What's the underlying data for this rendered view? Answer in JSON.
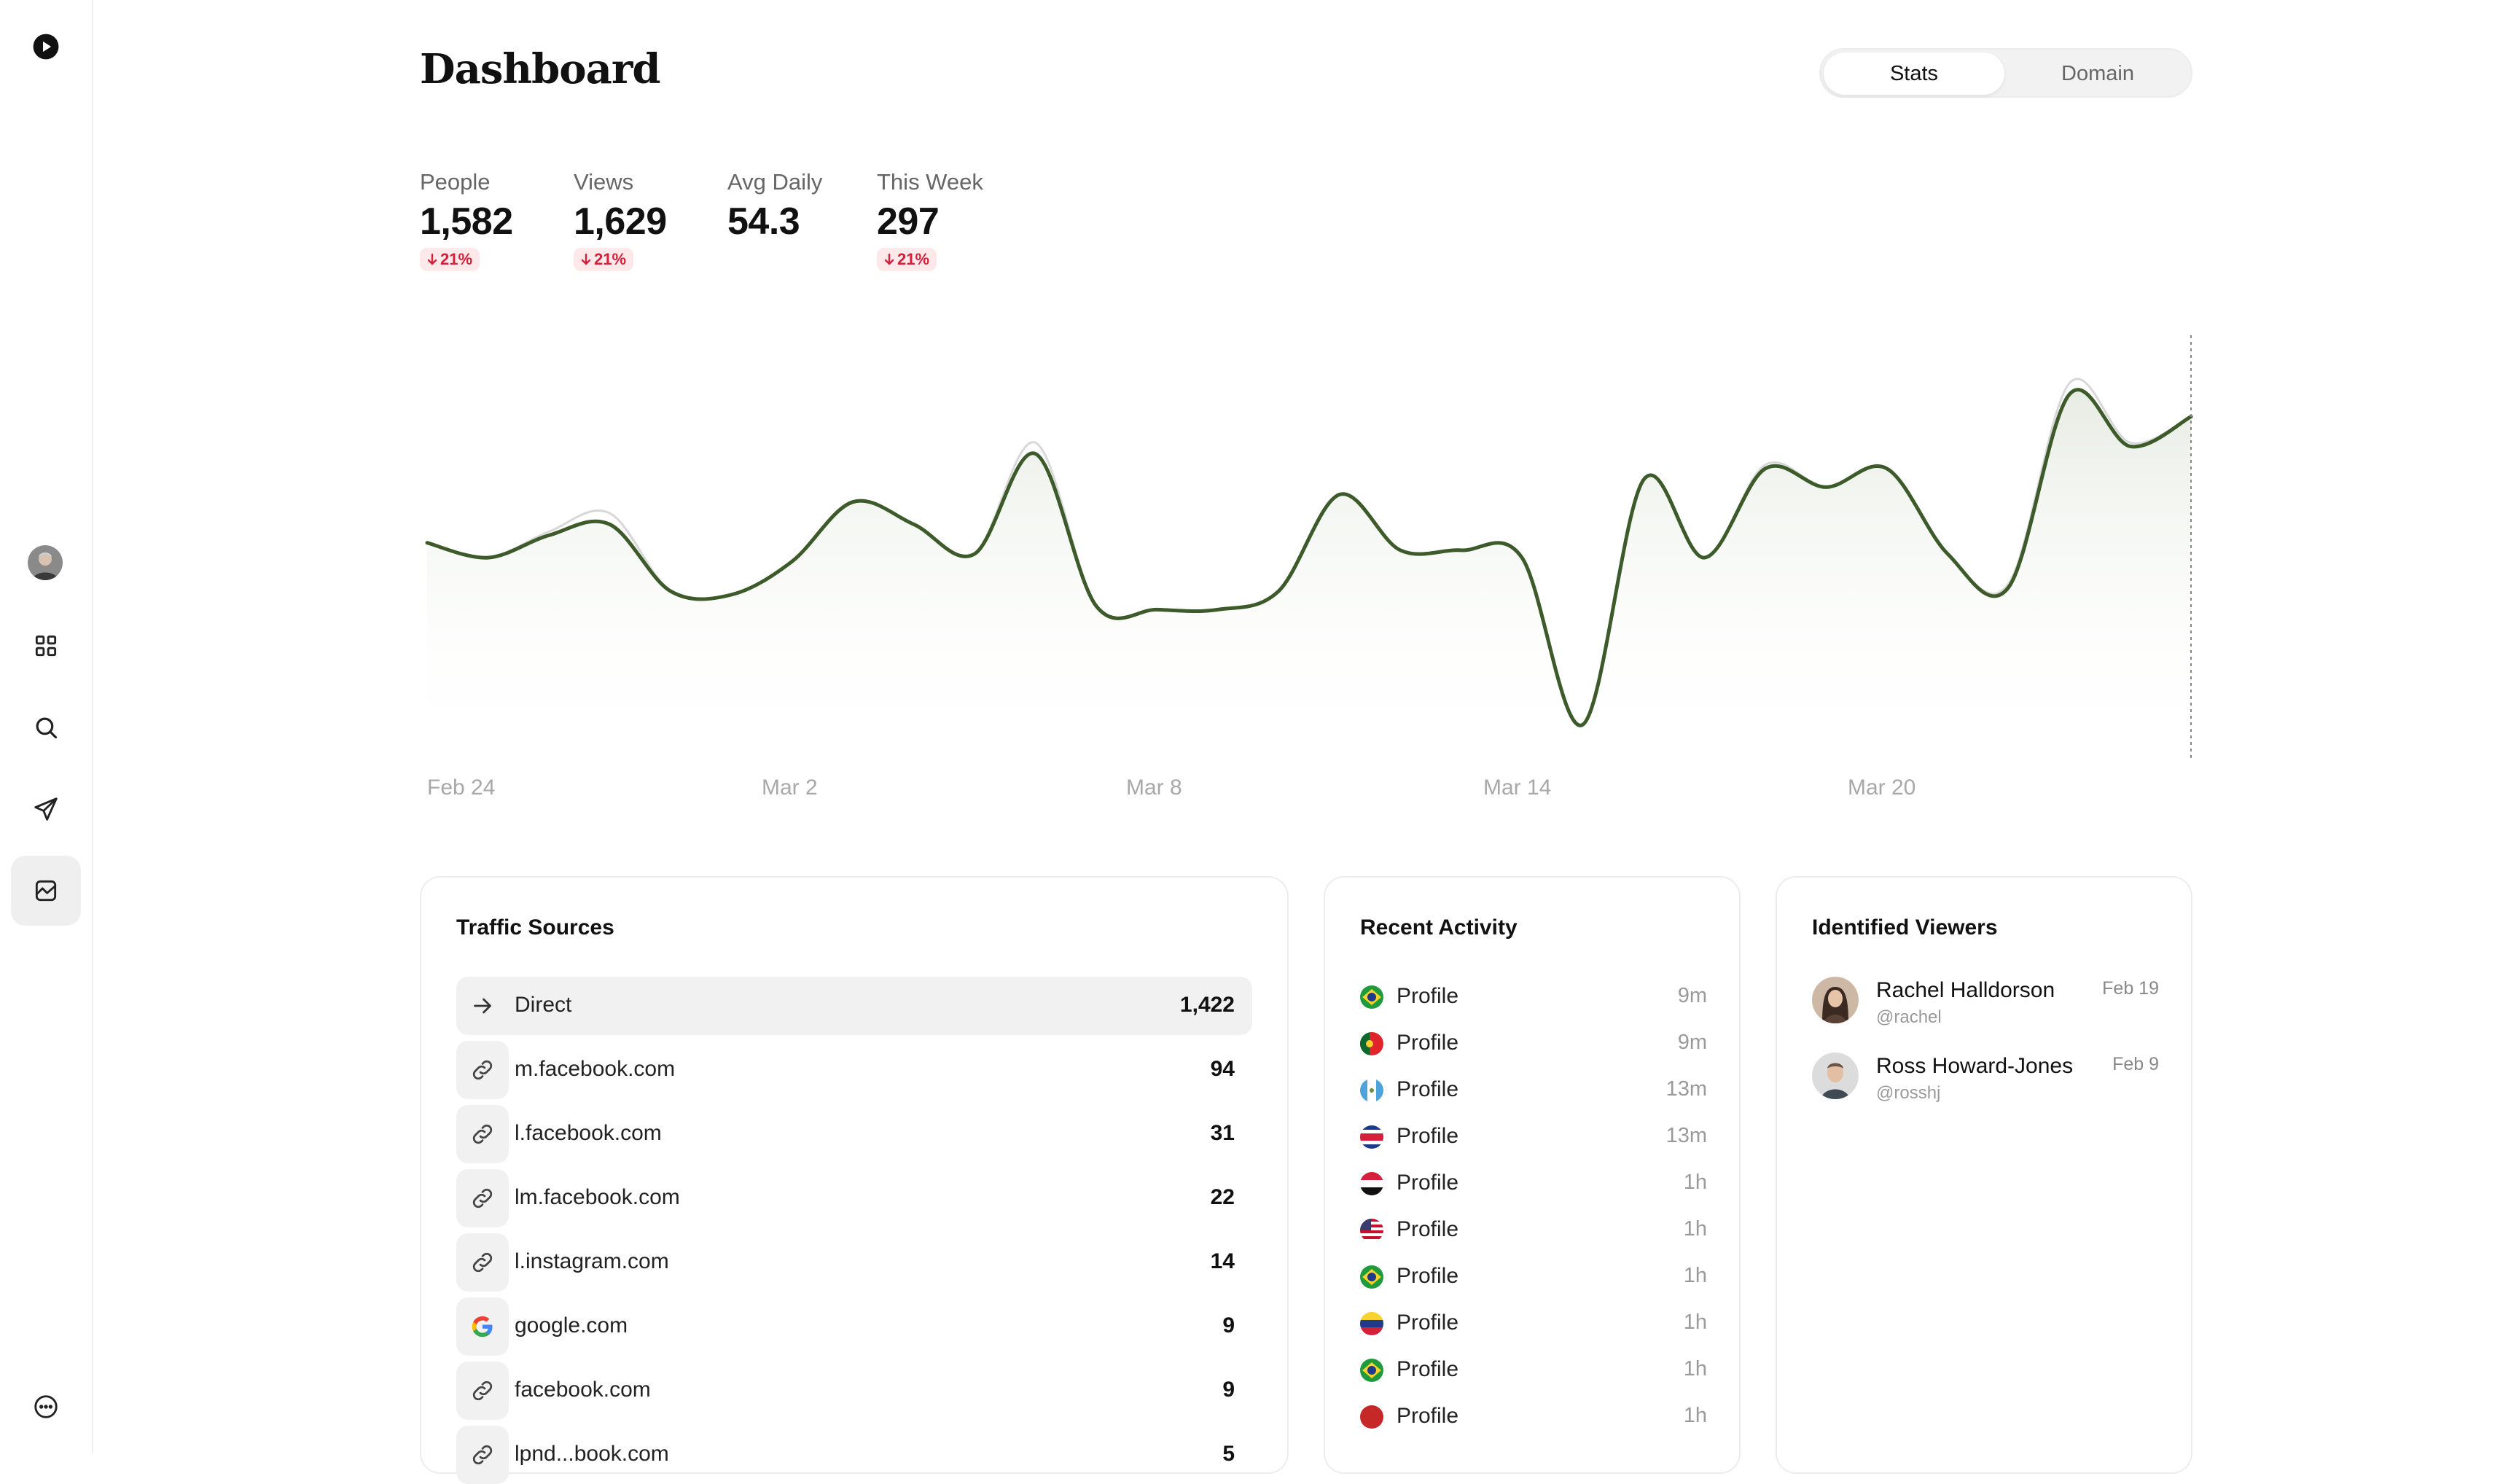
{
  "header": {
    "title": "Dashboard",
    "segments": [
      {
        "label": "Stats",
        "active": true
      },
      {
        "label": "Domain",
        "active": false
      }
    ]
  },
  "stats": [
    {
      "label": "People",
      "value": "1,582",
      "delta": "21%"
    },
    {
      "label": "Views",
      "value": "1,629",
      "delta": "21%"
    },
    {
      "label": "Avg Daily",
      "value": "54.3",
      "delta": ""
    },
    {
      "label": "This Week",
      "value": "297",
      "delta": "21%"
    }
  ],
  "colors": {
    "accent_line": "#3d5a2a",
    "delta_text": "#d6203b",
    "delta_bg": "#fde8ea"
  },
  "chart_data": {
    "type": "line",
    "x_labels": [
      "Feb 24",
      "Mar 2",
      "Mar 8",
      "Mar 14",
      "Mar 20"
    ],
    "series": [
      {
        "values": [
          58,
          54,
          60,
          63,
          45,
          44,
          53,
          69,
          63,
          55,
          82,
          41,
          40,
          40,
          45,
          71,
          56,
          56,
          54,
          9,
          75,
          54,
          78,
          73,
          78,
          55,
          46,
          98,
          84,
          92
        ]
      },
      {
        "values": [
          58,
          54,
          61,
          66,
          45,
          44,
          53,
          69,
          63,
          55,
          85,
          41,
          40,
          40,
          45,
          71,
          56,
          56,
          54,
          9,
          75,
          54,
          79,
          73,
          78,
          55,
          47,
          101,
          85,
          92
        ]
      }
    ],
    "ylim": [
      0,
      110
    ],
    "grid": false
  },
  "traffic_sources": {
    "title": "Traffic Sources",
    "rows": [
      {
        "label": "Direct",
        "value": "1,422",
        "fraction": 1.0,
        "icon": "arrow-right-icon"
      },
      {
        "label": "m.facebook.com",
        "value": "94",
        "fraction": 0.066,
        "icon": "link-icon"
      },
      {
        "label": "l.facebook.com",
        "value": "31",
        "fraction": 0.022,
        "icon": "link-icon"
      },
      {
        "label": "lm.facebook.com",
        "value": "22",
        "fraction": 0.015,
        "icon": "link-icon"
      },
      {
        "label": "l.instagram.com",
        "value": "14",
        "fraction": 0.01,
        "icon": "link-icon"
      },
      {
        "label": "google.com",
        "value": "9",
        "fraction": 0.006,
        "icon": "google-icon"
      },
      {
        "label": "facebook.com",
        "value": "9",
        "fraction": 0.006,
        "icon": "link-icon"
      },
      {
        "label": "lpnd...book.com",
        "value": "5",
        "fraction": 0.004,
        "icon": "link-icon"
      }
    ]
  },
  "recent_activity": {
    "title": "Recent Activity",
    "rows": [
      {
        "flag": "brazil",
        "label": "Profile",
        "time": "9m"
      },
      {
        "flag": "portugal",
        "label": "Profile",
        "time": "9m"
      },
      {
        "flag": "guatemala",
        "label": "Profile",
        "time": "13m"
      },
      {
        "flag": "costa-rica",
        "label": "Profile",
        "time": "13m"
      },
      {
        "flag": "egypt",
        "label": "Profile",
        "time": "1h"
      },
      {
        "flag": "usa",
        "label": "Profile",
        "time": "1h"
      },
      {
        "flag": "brazil",
        "label": "Profile",
        "time": "1h"
      },
      {
        "flag": "venezuela",
        "label": "Profile",
        "time": "1h"
      },
      {
        "flag": "brazil",
        "label": "Profile",
        "time": "1h"
      },
      {
        "flag": "red",
        "label": "Profile",
        "time": "1h"
      }
    ]
  },
  "identified_viewers": {
    "title": "Identified Viewers",
    "rows": [
      {
        "name": "Rachel Halldorson",
        "handle": "@rachel",
        "date": "Feb 19"
      },
      {
        "name": "Ross Howard-Jones",
        "handle": "@rosshj",
        "date": "Feb 9"
      }
    ]
  }
}
